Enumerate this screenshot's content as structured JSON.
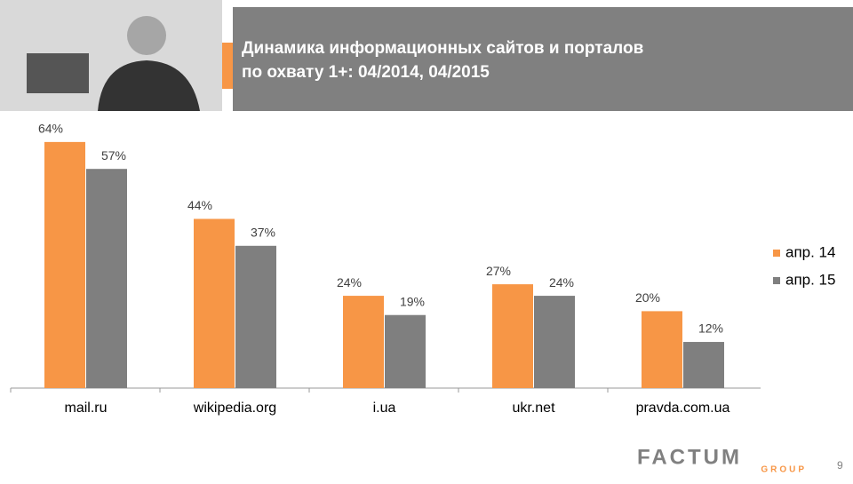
{
  "header": {
    "title_lines": [
      "Динамика информационных сайтов и порталов",
      "по охвату 1+: 04/2014, 04/2015"
    ]
  },
  "chart_data": {
    "type": "bar",
    "categories": [
      "mail.ru",
      "wikipedia.org",
      "i.ua",
      "ukr.net",
      "pravda.com.ua"
    ],
    "series": [
      {
        "name": "апр. 14",
        "color": "#f79646",
        "values": [
          64,
          44,
          24,
          27,
          20
        ],
        "value_labels": [
          "64%",
          "44%",
          "24%",
          "27%",
          "20%"
        ]
      },
      {
        "name": "апр. 15",
        "color": "#7f7f7f",
        "values": [
          57,
          37,
          19,
          24,
          12
        ],
        "value_labels": [
          "57%",
          "37%",
          "19%",
          "24%",
          "12%"
        ]
      }
    ],
    "legend": "right"
  },
  "footer": {
    "logo": "FACTUM",
    "logo_sub": "GROUP",
    "page": "9"
  }
}
